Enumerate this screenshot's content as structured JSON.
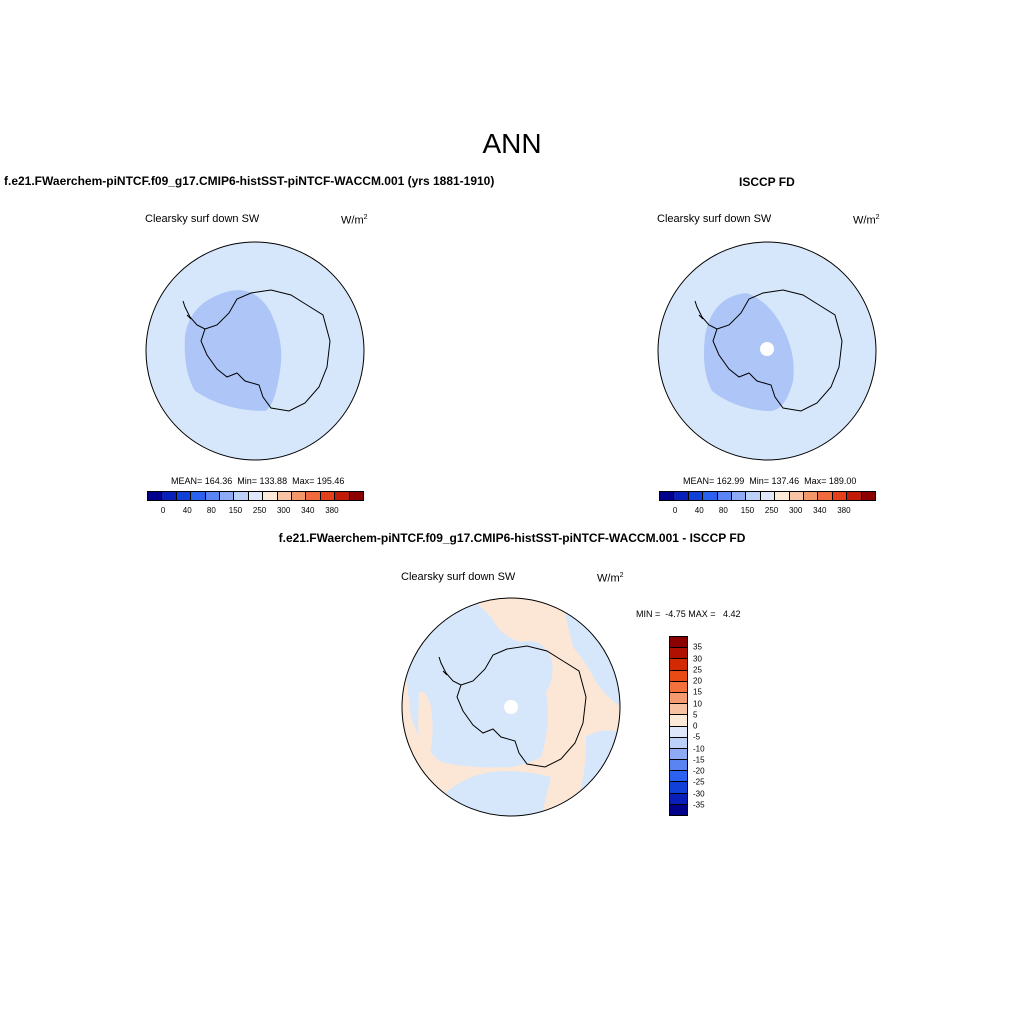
{
  "title": "ANN",
  "panels": [
    {
      "title": "f.e21.FWaerchem-piNTCF.f09_g17.CMIP6-histSST-piNTCF-WACCM.001 (yrs 1881-1910)",
      "var_label": "Clearsky surf down SW",
      "units": "W/m",
      "units_sup": "2",
      "stats": "MEAN= 164.36  Min= 133.88  Max= 195.46"
    },
    {
      "title": "ISCCP FD",
      "var_label": "Clearsky surf down SW",
      "units": "W/m",
      "units_sup": "2",
      "stats": "MEAN= 162.99  Min= 137.46  Max= 189.00"
    },
    {
      "title": "f.e21.FWaerchem-piNTCF.f09_g17.CMIP6-histSST-piNTCF-WACCM.001 - ISCCP FD",
      "var_label": "Clearsky surf down SW",
      "units": "W/m",
      "units_sup": "2",
      "stats": "MIN =  -4.75 MAX =   4.42"
    }
  ],
  "abs_colorbar": {
    "colors": [
      "#00008b",
      "#0a1fb8",
      "#1040d8",
      "#2b60f0",
      "#5a84f2",
      "#8eaaf5",
      "#bcd0f8",
      "#dfe8fb",
      "#fce9d8",
      "#f8c3a4",
      "#f4966c",
      "#f06a3c",
      "#e4401c",
      "#c01a08",
      "#8b0000"
    ],
    "ticks": [
      "0",
      "40",
      "80",
      "150",
      "250",
      "300",
      "340",
      "380"
    ]
  },
  "diff_colorbar": {
    "colors": [
      "#8b0000",
      "#b01002",
      "#d42a04",
      "#ea4a14",
      "#f4703c",
      "#f59a70",
      "#f8c2a2",
      "#fce9d8",
      "#dfe8fb",
      "#bcd0f8",
      "#8eaaf5",
      "#5a84f2",
      "#2b60f0",
      "#1040d8",
      "#0a1fb8",
      "#00008b"
    ],
    "ticks": [
      "35",
      "30",
      "25",
      "20",
      "15",
      "10",
      "5",
      "0",
      "-5",
      "-10",
      "-15",
      "-20",
      "-25",
      "-30",
      "-35"
    ]
  },
  "map_colors": {
    "ocean_light_blue": "#d6e7fb",
    "interior_blue": "#adc6f7",
    "diff_positive": "#fce7d6",
    "diff_negative": "#d6e7fb",
    "missing": "#ffffff"
  }
}
